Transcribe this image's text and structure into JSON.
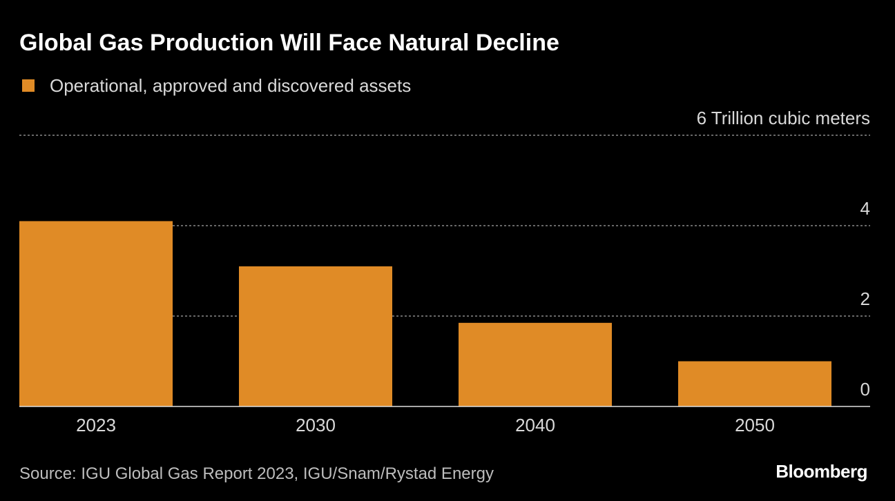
{
  "chart_data": {
    "type": "bar",
    "title": "Global Gas Production Will Face Natural Decline",
    "series": [
      {
        "name": "Operational, approved and discovered assets",
        "color": "#e08b26",
        "values": [
          4.1,
          3.1,
          1.85,
          1.0
        ]
      }
    ],
    "categories": [
      "2023",
      "2030",
      "2040",
      "2050"
    ],
    "ylim": [
      0,
      6
    ],
    "yticks": [
      0,
      2,
      4,
      {
        "value": 6,
        "label": "6 Trillion cubic meters"
      }
    ],
    "grid": true,
    "source": "Source: IGU Global Gas Report 2023, IGU/Snam/Rystad Energy",
    "brand": "Bloomberg"
  }
}
